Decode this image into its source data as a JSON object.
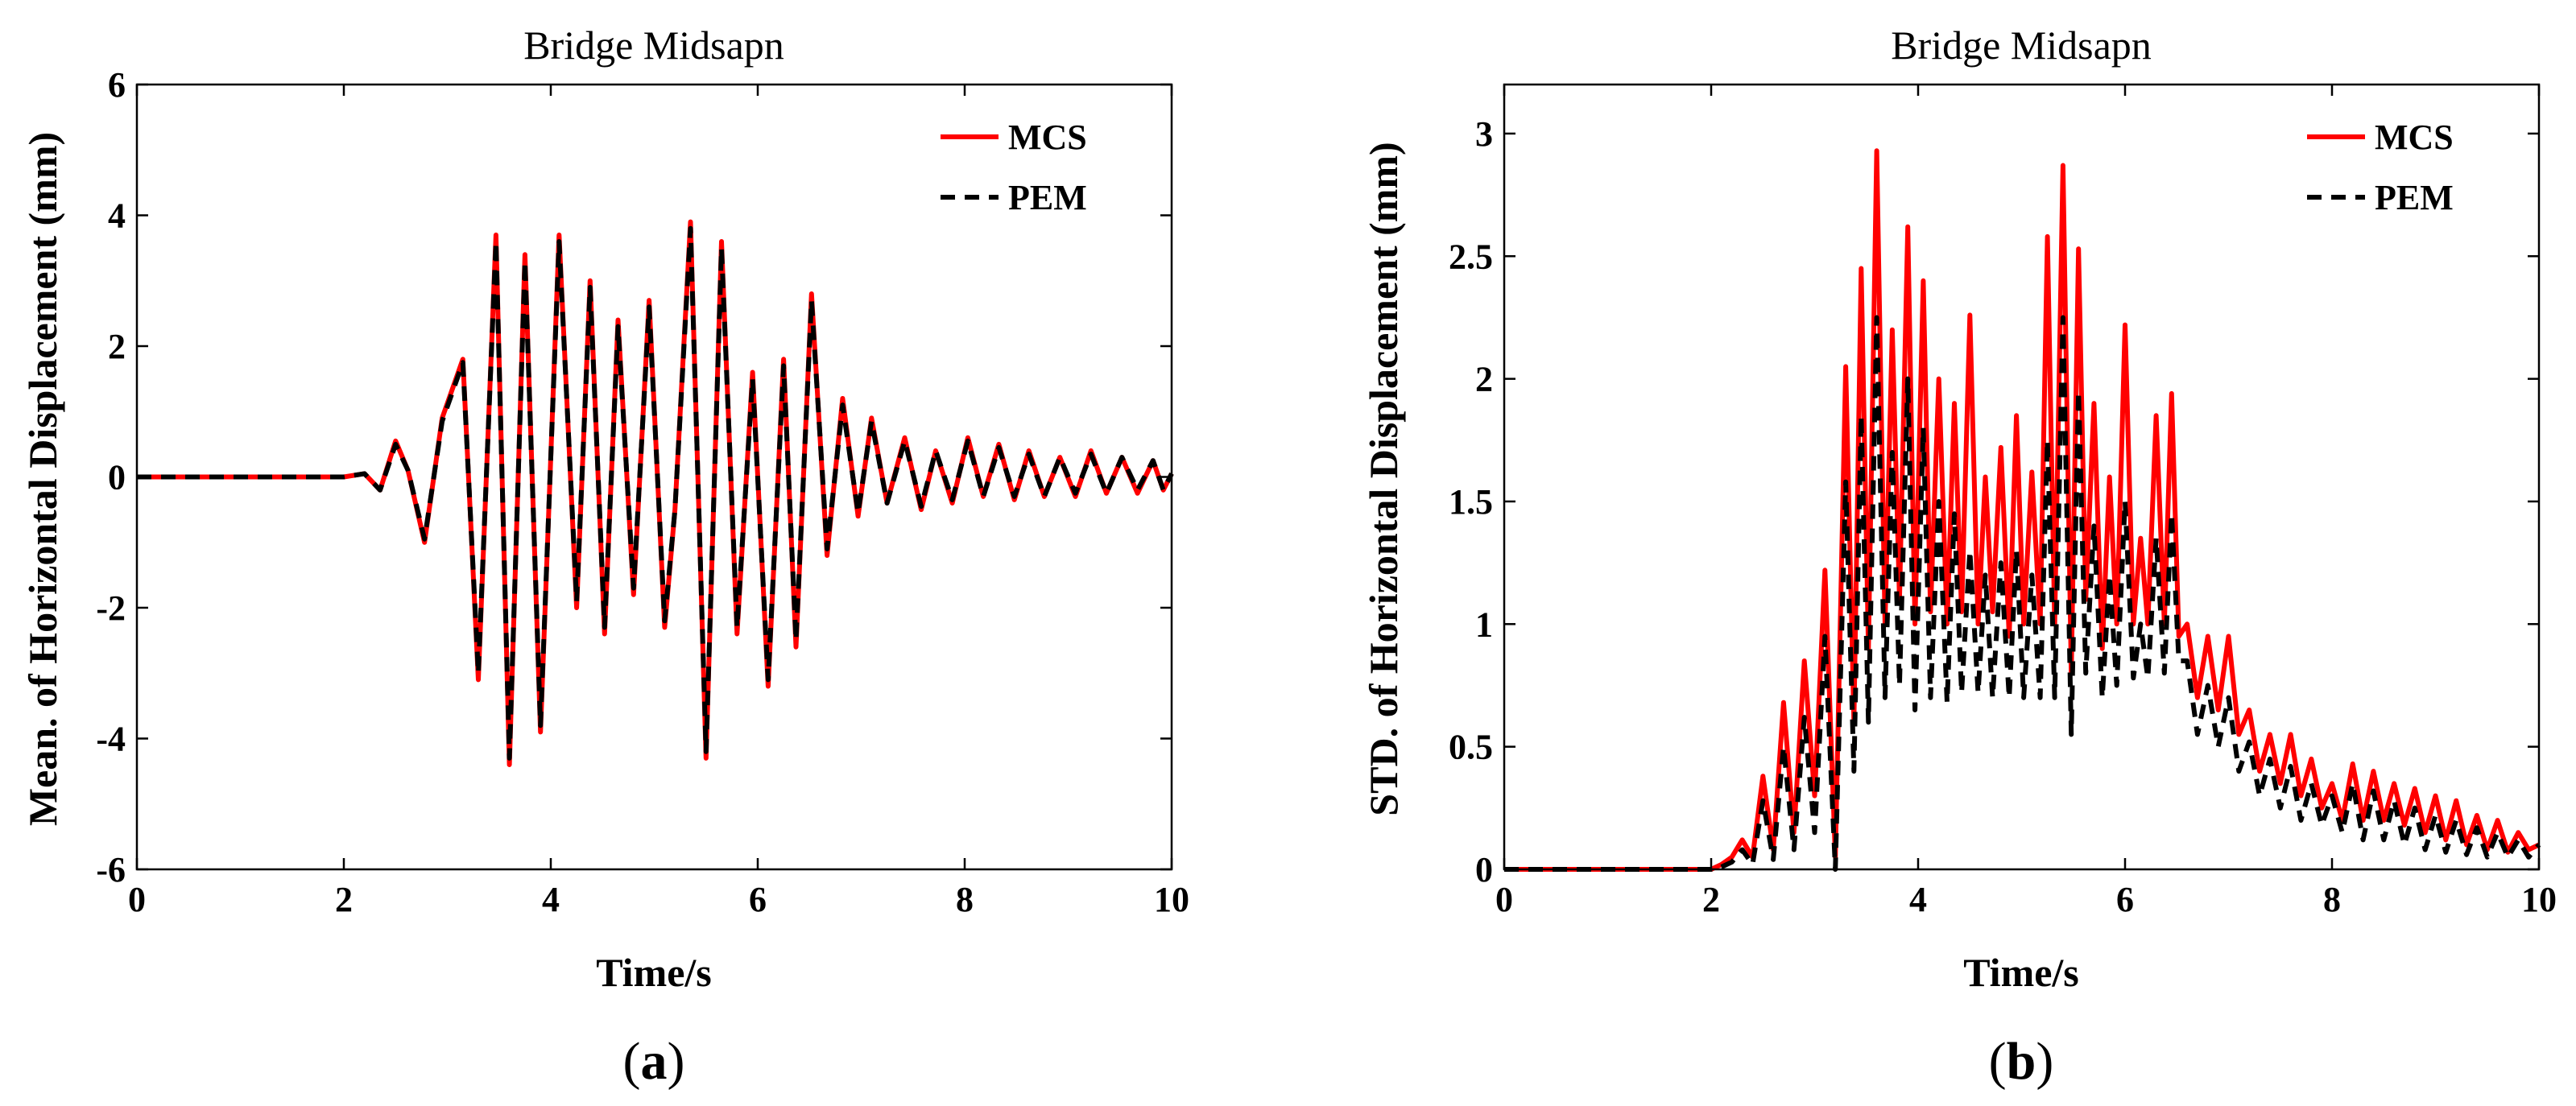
{
  "chart_data": [
    {
      "type": "line",
      "title": "Bridge Midsapn",
      "xlabel": "Time/s",
      "ylabel": "Mean. of Horizontal Displacement (mm)",
      "xlim": [
        0,
        10
      ],
      "ylim": [
        -6,
        6
      ],
      "xticks": [
        0,
        2,
        4,
        6,
        8,
        10
      ],
      "yticks": [
        -6,
        -4,
        -2,
        0,
        2,
        4,
        6
      ],
      "xtick_labels": [
        "0",
        "2",
        "4",
        "6",
        "8",
        "10"
      ],
      "ytick_labels": [
        "-6",
        "-4",
        "-2",
        "0",
        "2",
        "4",
        "6"
      ],
      "legend": "top-right",
      "caption": "a",
      "series": [
        {
          "name": "MCS",
          "color": "#ff0000",
          "style": "solid",
          "x": [
            0,
            2.0,
            2.2,
            2.35,
            2.5,
            2.62,
            2.78,
            2.95,
            3.15,
            3.3,
            3.47,
            3.6,
            3.75,
            3.9,
            4.08,
            4.25,
            4.38,
            4.52,
            4.65,
            4.8,
            4.95,
            5.1,
            5.2,
            5.35,
            5.5,
            5.65,
            5.8,
            5.95,
            6.1,
            6.25,
            6.37,
            6.52,
            6.67,
            6.82,
            6.97,
            7.1,
            7.25,
            7.42,
            7.58,
            7.72,
            7.88,
            8.03,
            8.18,
            8.33,
            8.48,
            8.62,
            8.77,
            8.92,
            9.07,
            9.22,
            9.37,
            9.52,
            9.67,
            9.82,
            9.92,
            10.0
          ],
          "y": [
            0,
            0,
            0.05,
            -0.2,
            0.55,
            0.1,
            -1.0,
            0.9,
            1.8,
            -3.1,
            3.7,
            -4.4,
            3.4,
            -3.9,
            3.7,
            -2.0,
            3.0,
            -2.4,
            2.4,
            -1.8,
            2.7,
            -2.3,
            -0.5,
            3.9,
            -4.3,
            3.6,
            -2.4,
            1.6,
            -3.2,
            1.8,
            -2.6,
            2.8,
            -1.2,
            1.2,
            -0.6,
            0.9,
            -0.4,
            0.6,
            -0.5,
            0.4,
            -0.4,
            0.6,
            -0.3,
            0.5,
            -0.35,
            0.4,
            -0.3,
            0.3,
            -0.3,
            0.4,
            -0.25,
            0.3,
            -0.25,
            0.25,
            -0.2,
            0.05
          ]
        },
        {
          "name": "PEM",
          "color": "#000000",
          "style": "dashed",
          "x": [
            0,
            2.0,
            2.2,
            2.35,
            2.5,
            2.62,
            2.78,
            2.95,
            3.15,
            3.3,
            3.47,
            3.6,
            3.75,
            3.9,
            4.08,
            4.25,
            4.38,
            4.52,
            4.65,
            4.8,
            4.95,
            5.1,
            5.2,
            5.35,
            5.5,
            5.65,
            5.8,
            5.95,
            6.1,
            6.25,
            6.37,
            6.52,
            6.67,
            6.82,
            6.97,
            7.1,
            7.25,
            7.42,
            7.58,
            7.72,
            7.88,
            8.03,
            8.18,
            8.33,
            8.48,
            8.62,
            8.77,
            8.92,
            9.07,
            9.22,
            9.37,
            9.52,
            9.67,
            9.82,
            9.92,
            10.0
          ],
          "y": [
            0,
            0,
            0.05,
            -0.2,
            0.5,
            0.1,
            -0.95,
            0.85,
            1.75,
            -3.0,
            3.6,
            -4.3,
            3.3,
            -3.8,
            3.6,
            -1.9,
            2.9,
            -2.3,
            2.3,
            -1.7,
            2.6,
            -2.2,
            -0.5,
            3.8,
            -4.2,
            3.5,
            -2.3,
            1.5,
            -3.1,
            1.7,
            -2.5,
            2.7,
            -1.1,
            1.1,
            -0.55,
            0.85,
            -0.4,
            0.55,
            -0.45,
            0.4,
            -0.35,
            0.55,
            -0.3,
            0.45,
            -0.3,
            0.35,
            -0.3,
            0.3,
            -0.25,
            0.35,
            -0.25,
            0.3,
            -0.2,
            0.25,
            -0.2,
            0.05
          ]
        }
      ]
    },
    {
      "type": "line",
      "title": "Bridge Midsapn",
      "xlabel": "Time/s",
      "ylabel": "STD. of Horizontal Displacement (mm)",
      "xlim": [
        0,
        10
      ],
      "ylim": [
        0,
        3.2
      ],
      "xticks": [
        0,
        2,
        4,
        6,
        8,
        10
      ],
      "yticks": [
        0,
        0.5,
        1,
        1.5,
        2,
        2.5,
        3
      ],
      "xtick_labels": [
        "0",
        "2",
        "4",
        "6",
        "8",
        "10"
      ],
      "ytick_labels": [
        "0",
        "0.5",
        "1",
        "1.5",
        "2",
        "2.5",
        "3"
      ],
      "legend": "top-right",
      "caption": "b",
      "series": [
        {
          "name": "MCS",
          "color": "#ff0000",
          "style": "solid",
          "x": [
            0,
            2.0,
            2.1,
            2.2,
            2.3,
            2.4,
            2.5,
            2.6,
            2.7,
            2.8,
            2.9,
            3.0,
            3.1,
            3.2,
            3.3,
            3.38,
            3.45,
            3.52,
            3.6,
            3.68,
            3.75,
            3.82,
            3.9,
            3.97,
            4.05,
            4.12,
            4.2,
            4.28,
            4.35,
            4.42,
            4.5,
            4.58,
            4.65,
            4.72,
            4.8,
            4.88,
            4.95,
            5.02,
            5.1,
            5.18,
            5.25,
            5.32,
            5.4,
            5.48,
            5.55,
            5.62,
            5.7,
            5.78,
            5.85,
            5.92,
            6.0,
            6.08,
            6.15,
            6.22,
            6.3,
            6.38,
            6.45,
            6.52,
            6.6,
            6.7,
            6.8,
            6.9,
            7.0,
            7.1,
            7.2,
            7.3,
            7.4,
            7.5,
            7.6,
            7.7,
            7.8,
            7.9,
            8.0,
            8.1,
            8.2,
            8.3,
            8.4,
            8.5,
            8.6,
            8.7,
            8.8,
            8.9,
            9.0,
            9.1,
            9.2,
            9.3,
            9.4,
            9.5,
            9.6,
            9.7,
            9.8,
            9.9,
            10.0
          ],
          "y": [
            0,
            0,
            0.02,
            0.05,
            0.12,
            0.05,
            0.38,
            0.08,
            0.68,
            0.15,
            0.85,
            0.3,
            1.22,
            0.05,
            2.05,
            0.6,
            2.45,
            0.9,
            2.93,
            1.0,
            2.2,
            1.1,
            2.62,
            1.0,
            2.4,
            1.05,
            2.0,
            1.0,
            1.9,
            1.05,
            2.26,
            1.0,
            1.6,
            1.05,
            1.72,
            0.95,
            1.85,
            1.0,
            1.62,
            1.0,
            2.58,
            1.0,
            2.87,
            0.8,
            2.53,
            1.1,
            1.9,
            0.9,
            1.6,
            1.0,
            2.22,
            1.0,
            1.35,
            1.0,
            1.85,
            1.0,
            1.94,
            0.95,
            1.0,
            0.7,
            0.95,
            0.65,
            0.95,
            0.55,
            0.65,
            0.4,
            0.55,
            0.35,
            0.55,
            0.3,
            0.45,
            0.25,
            0.35,
            0.2,
            0.43,
            0.2,
            0.4,
            0.2,
            0.35,
            0.18,
            0.33,
            0.15,
            0.3,
            0.12,
            0.28,
            0.1,
            0.22,
            0.08,
            0.2,
            0.07,
            0.15,
            0.08,
            0.1
          ]
        },
        {
          "name": "PEM",
          "color": "#000000",
          "style": "dashed",
          "x": [
            0,
            2.0,
            2.1,
            2.2,
            2.3,
            2.4,
            2.5,
            2.6,
            2.7,
            2.8,
            2.9,
            3.0,
            3.1,
            3.2,
            3.3,
            3.38,
            3.45,
            3.52,
            3.6,
            3.68,
            3.75,
            3.82,
            3.9,
            3.97,
            4.05,
            4.12,
            4.2,
            4.28,
            4.35,
            4.42,
            4.5,
            4.58,
            4.65,
            4.72,
            4.8,
            4.88,
            4.95,
            5.02,
            5.1,
            5.18,
            5.25,
            5.32,
            5.4,
            5.48,
            5.55,
            5.62,
            5.7,
            5.78,
            5.85,
            5.92,
            6.0,
            6.08,
            6.15,
            6.22,
            6.3,
            6.38,
            6.45,
            6.52,
            6.6,
            6.7,
            6.8,
            6.9,
            7.0,
            7.1,
            7.2,
            7.3,
            7.4,
            7.5,
            7.6,
            7.7,
            7.8,
            7.9,
            8.0,
            8.1,
            8.2,
            8.3,
            8.4,
            8.5,
            8.6,
            8.7,
            8.8,
            8.9,
            9.0,
            9.1,
            9.2,
            9.3,
            9.4,
            9.5,
            9.6,
            9.7,
            9.8,
            9.9,
            10.0
          ],
          "y": [
            0,
            0,
            0.01,
            0.03,
            0.08,
            0.02,
            0.28,
            0.04,
            0.5,
            0.08,
            0.62,
            0.15,
            0.95,
            0.0,
            1.58,
            0.4,
            1.85,
            0.6,
            2.25,
            0.7,
            1.7,
            0.75,
            2.0,
            0.65,
            1.8,
            0.7,
            1.5,
            0.68,
            1.45,
            0.72,
            1.3,
            0.72,
            1.2,
            0.7,
            1.25,
            0.7,
            1.3,
            0.7,
            1.2,
            0.7,
            1.75,
            0.7,
            2.25,
            0.55,
            1.95,
            0.8,
            1.4,
            0.7,
            1.2,
            0.75,
            1.5,
            0.78,
            1.0,
            0.78,
            1.35,
            0.8,
            1.45,
            0.85,
            0.85,
            0.55,
            0.75,
            0.5,
            0.7,
            0.4,
            0.52,
            0.3,
            0.45,
            0.25,
            0.42,
            0.2,
            0.35,
            0.18,
            0.3,
            0.15,
            0.35,
            0.12,
            0.32,
            0.12,
            0.28,
            0.1,
            0.25,
            0.08,
            0.22,
            0.07,
            0.2,
            0.06,
            0.17,
            0.05,
            0.15,
            0.05,
            0.12,
            0.05,
            0.1
          ]
        }
      ]
    }
  ]
}
